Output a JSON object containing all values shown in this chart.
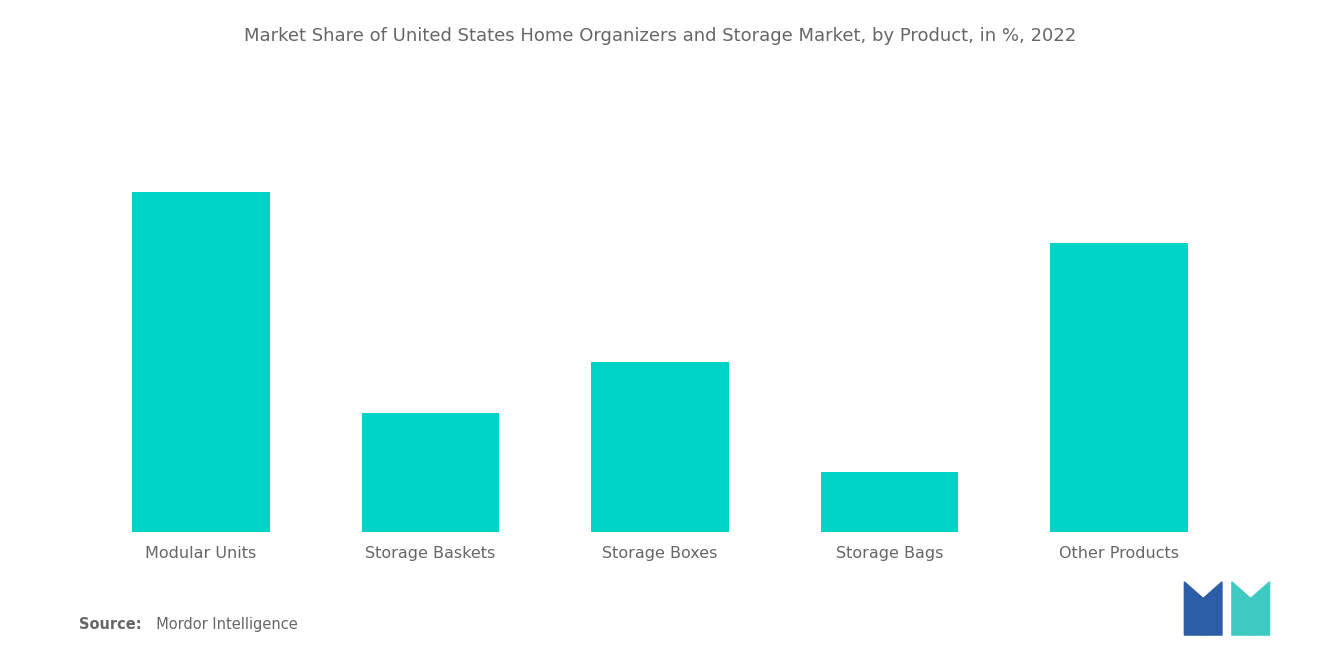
{
  "title": "Market Share of United States Home Organizers and Storage Market, by Product, in %, 2022",
  "categories": [
    "Modular Units",
    "Storage Baskets",
    "Storage Boxes",
    "Storage Bags",
    "Other Products"
  ],
  "values": [
    40,
    14,
    20,
    7,
    34
  ],
  "bar_color": "#00D4C8",
  "background_color": "#ffffff",
  "title_color": "#666666",
  "label_color": "#666666",
  "title_fontsize": 13.0,
  "label_fontsize": 11.5,
  "source_bold": "Source:",
  "source_rest": "  Mordor Intelligence",
  "ylim": [
    0,
    50
  ],
  "bar_width": 0.6,
  "logo_blue": "#2B5EA7",
  "logo_teal": "#3FC9C3"
}
